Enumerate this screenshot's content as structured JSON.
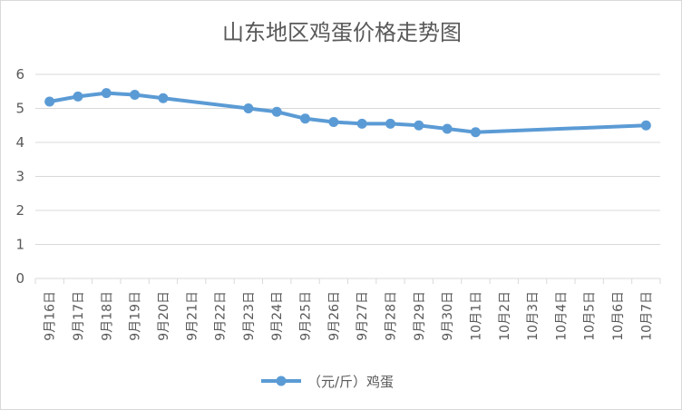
{
  "chart_data": {
    "type": "line",
    "title": "山东地区鸡蛋价格走势图",
    "xlabel": "",
    "ylabel": "",
    "ylim": [
      0,
      6
    ],
    "yticks": [
      "0",
      "1",
      "2",
      "3",
      "4",
      "5",
      "6"
    ],
    "grid": true,
    "legend_position": "bottom",
    "line_color": "#5B9BD5",
    "categories": [
      "9月16日",
      "9月17日",
      "9月18日",
      "9月19日",
      "9月20日",
      "9月21日",
      "9月22日",
      "9月23日",
      "9月24日",
      "9月25日",
      "9月26日",
      "9月27日",
      "9月28日",
      "9月29日",
      "9月30日",
      "10月1日",
      "10月2日",
      "10月3日",
      "10月4日",
      "10月5日",
      "10月6日",
      "10月7日"
    ],
    "series": [
      {
        "name": "（元/斤）鸡蛋",
        "values": [
          5.2,
          5.35,
          5.45,
          5.4,
          5.3,
          null,
          null,
          5.0,
          4.9,
          4.7,
          4.6,
          4.55,
          4.55,
          4.5,
          4.4,
          4.3,
          null,
          null,
          null,
          null,
          null,
          4.5
        ]
      }
    ]
  }
}
